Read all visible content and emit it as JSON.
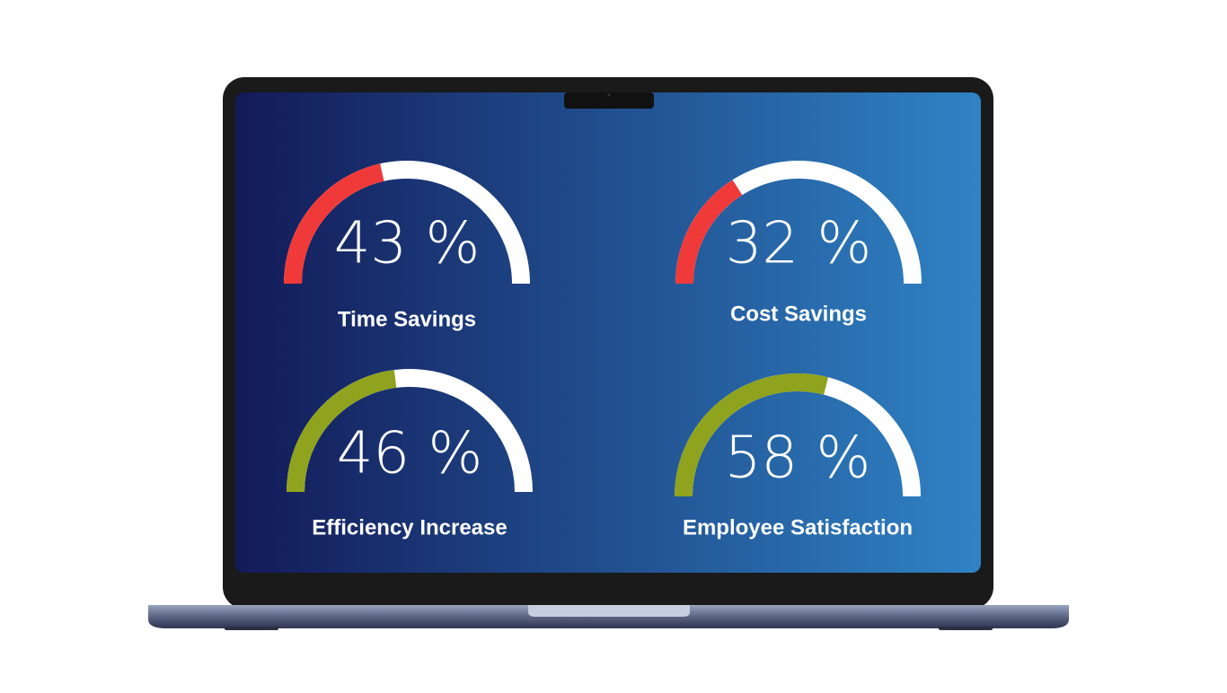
{
  "chart_data": [
    {
      "type": "gauge",
      "title": "Time Savings",
      "value": 43,
      "value_label": "43 %",
      "color": "#f03a3a",
      "ylim": [
        0,
        100
      ]
    },
    {
      "type": "gauge",
      "title": "Cost Savings",
      "value": 32,
      "value_label": "32 %",
      "color": "#f03a3a",
      "ylim": [
        0,
        100
      ]
    },
    {
      "type": "gauge",
      "title": "Efficiency Increase",
      "value": 46,
      "value_label": "46 %",
      "color": "#8fa31e",
      "ylim": [
        0,
        100
      ]
    },
    {
      "type": "gauge",
      "title": "Employee Satisfaction",
      "value": 58,
      "value_label": "58 %",
      "color": "#8fa31e",
      "ylim": [
        0,
        100
      ]
    }
  ]
}
